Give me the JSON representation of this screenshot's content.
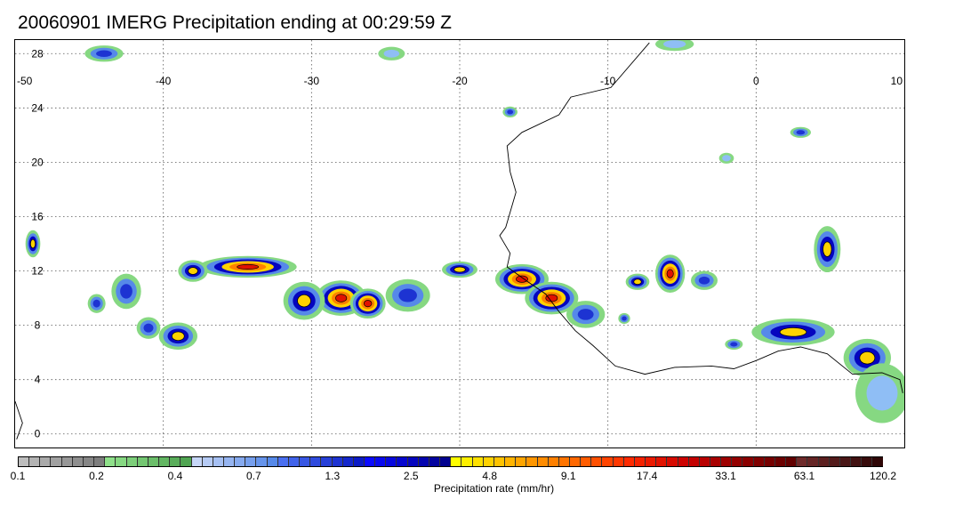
{
  "title": "20060901 IMERG Precipitation ending at 00:29:59 Z",
  "map": {
    "lon_range": [
      -50,
      10
    ],
    "lat_range": [
      -1,
      29
    ],
    "lon_ticks": [
      "-50",
      "-40",
      "-30",
      "-20",
      "-10",
      "0",
      "10"
    ],
    "lat_ticks": [
      "28",
      "24",
      "20",
      "16",
      "12",
      "8",
      "4",
      "0"
    ],
    "gridlines": "dotted",
    "coastline_color": "#000000"
  },
  "colorbar": {
    "label": "Precipitation rate (mm/hr)",
    "tick_labels": [
      "0.1",
      "0.2",
      "0.4",
      "0.7",
      "1.3",
      "2.5",
      "4.8",
      "9.1",
      "17.4",
      "33.1",
      "63.1",
      "120.2"
    ],
    "colors": [
      "#bdbdbd",
      "#b3b3b3",
      "#aaaaaa",
      "#a1a1a1",
      "#989898",
      "#8f8f8f",
      "#868686",
      "#7d7d7d",
      "#8fe08a",
      "#86d882",
      "#7dcf7a",
      "#74c772",
      "#6bbe6a",
      "#62b662",
      "#59ad5a",
      "#50a552",
      "#c6d6f7",
      "#b6cbf5",
      "#a6c0f3",
      "#96b5f1",
      "#86aaef",
      "#769fed",
      "#6694eb",
      "#5689e9",
      "#4a6ff0",
      "#4163ea",
      "#3857e4",
      "#2f4bde",
      "#263fd8",
      "#1d33d2",
      "#1427cc",
      "#0b1bc6",
      "#0a0aff",
      "#0808ef",
      "#0707df",
      "#0606cf",
      "#0505bf",
      "#0404af",
      "#03039f",
      "#02028f",
      "#ffff00",
      "#fff000",
      "#ffe100",
      "#ffd200",
      "#ffc300",
      "#ffb400",
      "#ffa500",
      "#ff9600",
      "#ff8c00",
      "#ff8000",
      "#ff7400",
      "#ff6800",
      "#ff5c00",
      "#ff5000",
      "#ff4400",
      "#ff3800",
      "#ff2a00",
      "#f52200",
      "#eb1a00",
      "#e11200",
      "#d70a00",
      "#cd0200",
      "#c30000",
      "#b90000",
      "#a80000",
      "#9e0000",
      "#940000",
      "#8a0000",
      "#800000",
      "#760000",
      "#6c0000",
      "#620000",
      "#6e2a2a",
      "#652525",
      "#5c2020",
      "#531b1b",
      "#4a1616",
      "#411111",
      "#380c0c",
      "#2f0707"
    ]
  }
}
